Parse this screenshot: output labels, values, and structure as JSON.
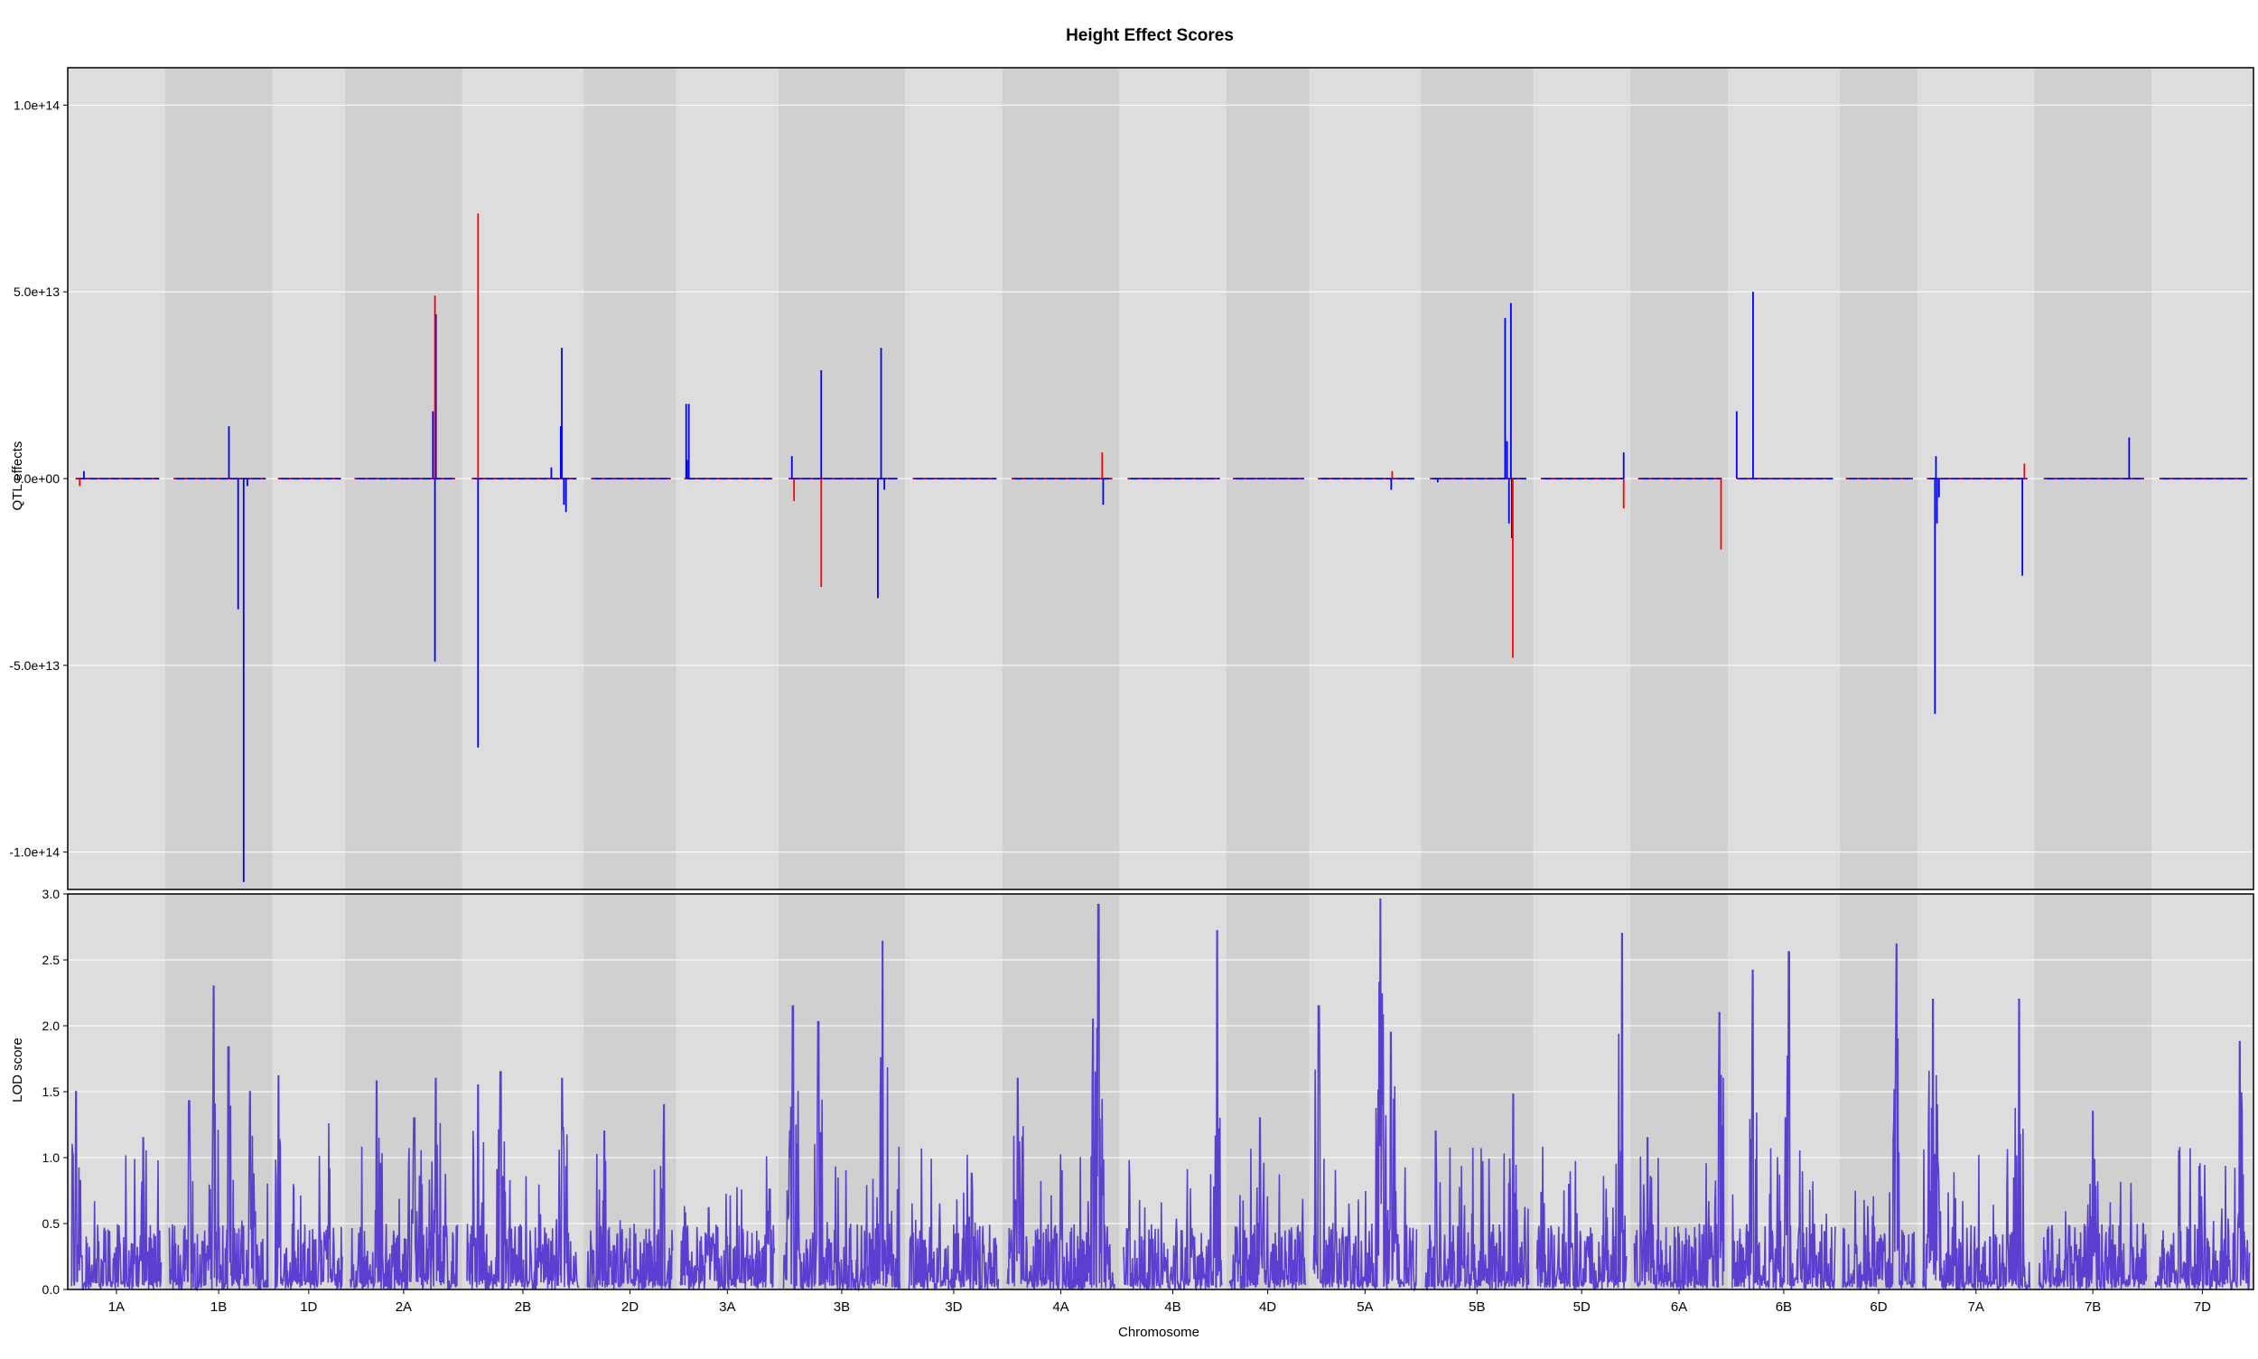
{
  "title": "Height Effect Scores",
  "chart_data": [
    {
      "type": "line",
      "panel": "effects",
      "title": "Height Effect Scores",
      "xlabel": "Chromosome",
      "ylabel": "QTL effects",
      "ylim": [
        -110000000000000.0,
        110000000000000.0
      ],
      "ytick_values": [
        100000000000000.0,
        50000000000000.0,
        0,
        -50000000000000.0,
        -100000000000000.0
      ],
      "ytick_labels": [
        "1.0e+14",
        "5.0e+13",
        "0.0e+00",
        "-5.0e+13",
        "-1.0e+14"
      ],
      "grid": true,
      "series": [
        {
          "color": "#0000ff",
          "spikes": [
            {
              "chr": "1A",
              "pos": 0.1,
              "value": 2000000000000.0
            },
            {
              "chr": "1B",
              "pos": 0.6,
              "value": 14000000000000.0
            },
            {
              "chr": "1B",
              "pos": 0.7,
              "value": -35000000000000.0
            },
            {
              "chr": "1B",
              "pos": 0.76,
              "value": -108000000000000.0
            },
            {
              "chr": "1B",
              "pos": 0.8,
              "value": -2000000000000.0
            },
            {
              "chr": "2A",
              "pos": 0.78,
              "value": 18000000000000.0
            },
            {
              "chr": "2A",
              "pos": 0.8,
              "value": -49000000000000.0
            },
            {
              "chr": "2A",
              "pos": 0.81,
              "value": 44000000000000.0
            },
            {
              "chr": "2B",
              "pos": 0.06,
              "value": -72000000000000.0
            },
            {
              "chr": "2B",
              "pos": 0.76,
              "value": 3000000000000.0
            },
            {
              "chr": "2B",
              "pos": 0.85,
              "value": 14000000000000.0
            },
            {
              "chr": "2B",
              "pos": 0.86,
              "value": 35000000000000.0
            },
            {
              "chr": "2B",
              "pos": 0.88,
              "value": -7000000000000.0
            },
            {
              "chr": "2B",
              "pos": 0.9,
              "value": -9000000000000.0
            },
            {
              "chr": "3A",
              "pos": 0.02,
              "value": 20000000000000.0
            },
            {
              "chr": "3A",
              "pos": 0.03,
              "value": 5000000000000.0
            },
            {
              "chr": "3A",
              "pos": 0.05,
              "value": 20000000000000.0
            },
            {
              "chr": "3B",
              "pos": 0.03,
              "value": 6000000000000.0
            },
            {
              "chr": "3B",
              "pos": 0.3,
              "value": 29000000000000.0
            },
            {
              "chr": "3B",
              "pos": 0.82,
              "value": -32000000000000.0
            },
            {
              "chr": "3B",
              "pos": 0.85,
              "value": 35000000000000.0
            },
            {
              "chr": "3B",
              "pos": 0.88,
              "value": -3000000000000.0
            },
            {
              "chr": "4A",
              "pos": 0.91,
              "value": -7000000000000.0
            },
            {
              "chr": "5A",
              "pos": 0.76,
              "value": -3000000000000.0
            },
            {
              "chr": "5B",
              "pos": 0.08,
              "value": -1000000000000.0
            },
            {
              "chr": "5B",
              "pos": 0.78,
              "value": 43000000000000.0
            },
            {
              "chr": "5B",
              "pos": 0.8,
              "value": 10000000000000.0
            },
            {
              "chr": "5B",
              "pos": 0.82,
              "value": -12000000000000.0
            },
            {
              "chr": "5B",
              "pos": 0.84,
              "value": 47000000000000.0
            },
            {
              "chr": "5B",
              "pos": 0.85,
              "value": -16000000000000.0
            },
            {
              "chr": "5D",
              "pos": 0.99,
              "value": 7000000000000.0
            },
            {
              "chr": "6B",
              "pos": 0.0,
              "value": 18000000000000.0
            },
            {
              "chr": "6B",
              "pos": 0.17,
              "value": 50000000000000.0
            },
            {
              "chr": "7A",
              "pos": 0.08,
              "value": -63000000000000.0
            },
            {
              "chr": "7A",
              "pos": 0.09,
              "value": 6000000000000.0
            },
            {
              "chr": "7A",
              "pos": 0.1,
              "value": -12000000000000.0
            },
            {
              "chr": "7A",
              "pos": 0.12,
              "value": -5000000000000.0
            },
            {
              "chr": "7A",
              "pos": 0.95,
              "value": -26000000000000.0
            },
            {
              "chr": "7B",
              "pos": 0.85,
              "value": 11000000000000.0
            }
          ]
        },
        {
          "color": "#ff0000",
          "spikes": [
            {
              "chr": "1A",
              "pos": 0.05,
              "value": -2000000000000.0
            },
            {
              "chr": "2A",
              "pos": 0.8,
              "value": 49000000000000.0
            },
            {
              "chr": "2B",
              "pos": 0.06,
              "value": 71000000000000.0
            },
            {
              "chr": "3B",
              "pos": 0.05,
              "value": -6000000000000.0
            },
            {
              "chr": "3B",
              "pos": 0.3,
              "value": -29000000000000.0
            },
            {
              "chr": "4A",
              "pos": 0.9,
              "value": 7000000000000.0
            },
            {
              "chr": "5A",
              "pos": 0.77,
              "value": 2000000000000.0
            },
            {
              "chr": "5B",
              "pos": 0.86,
              "value": -48000000000000.0
            },
            {
              "chr": "5D",
              "pos": 0.99,
              "value": -8000000000000.0
            },
            {
              "chr": "6A",
              "pos": 0.99,
              "value": -19000000000000.0
            },
            {
              "chr": "7A",
              "pos": 0.97,
              "value": 4000000000000.0
            }
          ]
        }
      ]
    },
    {
      "type": "line",
      "panel": "lod",
      "xlabel": "Chromosome",
      "ylabel": "LOD score",
      "ylim": [
        0,
        3.0
      ],
      "ytick_values": [
        0.0,
        0.5,
        1.0,
        1.5,
        2.0,
        2.5,
        3.0
      ],
      "ytick_labels": [
        "0.0",
        "0.5",
        "1.0",
        "1.5",
        "2.0",
        "2.5",
        "3.0"
      ],
      "grid": true,
      "color": "#5a3fd1",
      "peaks": [
        {
          "chr": "1A",
          "pos": 0.05,
          "value": 1.5
        },
        {
          "chr": "1A",
          "pos": 0.8,
          "value": 1.15
        },
        {
          "chr": "1B",
          "pos": 0.2,
          "value": 1.43
        },
        {
          "chr": "1B",
          "pos": 0.45,
          "value": 2.3
        },
        {
          "chr": "1B",
          "pos": 0.6,
          "value": 1.84
        },
        {
          "chr": "1B",
          "pos": 0.82,
          "value": 1.5
        },
        {
          "chr": "1D",
          "pos": 0.05,
          "value": 1.62
        },
        {
          "chr": "1D",
          "pos": 0.8,
          "value": 1.26
        },
        {
          "chr": "2A",
          "pos": 0.25,
          "value": 1.58
        },
        {
          "chr": "2A",
          "pos": 0.6,
          "value": 1.3
        },
        {
          "chr": "2A",
          "pos": 0.8,
          "value": 1.6
        },
        {
          "chr": "2B",
          "pos": 0.1,
          "value": 1.55
        },
        {
          "chr": "2B",
          "pos": 0.3,
          "value": 1.65
        },
        {
          "chr": "2B",
          "pos": 0.85,
          "value": 1.6
        },
        {
          "chr": "2D",
          "pos": 0.2,
          "value": 1.2
        },
        {
          "chr": "2D",
          "pos": 0.9,
          "value": 1.4
        },
        {
          "chr": "3A",
          "pos": 0.3,
          "value": 0.62
        },
        {
          "chr": "3A",
          "pos": 0.95,
          "value": 0.76
        },
        {
          "chr": "3B",
          "pos": 0.08,
          "value": 2.15
        },
        {
          "chr": "3B",
          "pos": 0.3,
          "value": 2.03
        },
        {
          "chr": "3B",
          "pos": 0.85,
          "value": 2.64
        },
        {
          "chr": "3D",
          "pos": 0.7,
          "value": 0.88
        },
        {
          "chr": "4A",
          "pos": 0.1,
          "value": 1.6
        },
        {
          "chr": "4A",
          "pos": 0.8,
          "value": 2.05
        },
        {
          "chr": "4A",
          "pos": 0.85,
          "value": 2.92
        },
        {
          "chr": "4B",
          "pos": 0.95,
          "value": 2.72
        },
        {
          "chr": "4D",
          "pos": 0.4,
          "value": 1.3
        },
        {
          "chr": "5A",
          "pos": 0.05,
          "value": 2.15
        },
        {
          "chr": "5A",
          "pos": 0.65,
          "value": 2.96
        },
        {
          "chr": "5A",
          "pos": 0.75,
          "value": 1.95
        },
        {
          "chr": "5B",
          "pos": 0.1,
          "value": 1.2
        },
        {
          "chr": "5B",
          "pos": 0.85,
          "value": 1.48
        },
        {
          "chr": "5D",
          "pos": 0.95,
          "value": 2.7
        },
        {
          "chr": "6A",
          "pos": 0.15,
          "value": 1.15
        },
        {
          "chr": "6A",
          "pos": 0.95,
          "value": 2.1
        },
        {
          "chr": "6B",
          "pos": 0.2,
          "value": 2.42
        },
        {
          "chr": "6B",
          "pos": 0.55,
          "value": 2.56
        },
        {
          "chr": "6D",
          "pos": 0.75,
          "value": 2.62
        },
        {
          "chr": "7A",
          "pos": 0.1,
          "value": 2.2
        },
        {
          "chr": "7A",
          "pos": 0.9,
          "value": 2.2
        },
        {
          "chr": "7B",
          "pos": 0.5,
          "value": 1.35
        },
        {
          "chr": "7D",
          "pos": 0.9,
          "value": 1.88
        }
      ]
    }
  ],
  "chromosomes": [
    "1A",
    "1B",
    "1D",
    "2A",
    "2B",
    "2D",
    "3A",
    "3B",
    "3D",
    "4A",
    "4B",
    "4D",
    "5A",
    "5B",
    "5D",
    "6A",
    "6B",
    "6D",
    "7A",
    "7B",
    "7D"
  ],
  "chromosome_lengths": [
    1.0,
    1.1,
    0.75,
    1.2,
    1.25,
    0.95,
    1.05,
    1.3,
    1.0,
    1.2,
    1.1,
    0.85,
    1.15,
    1.15,
    1.0,
    1.0,
    1.15,
    0.8,
    1.2,
    1.2,
    1.05
  ],
  "band_colors": [
    "#dddddd",
    "#d0d0d0"
  ],
  "axis_labels": {
    "x": "Chromosome",
    "y_top": "QTL effects",
    "y_bottom": "LOD score"
  }
}
